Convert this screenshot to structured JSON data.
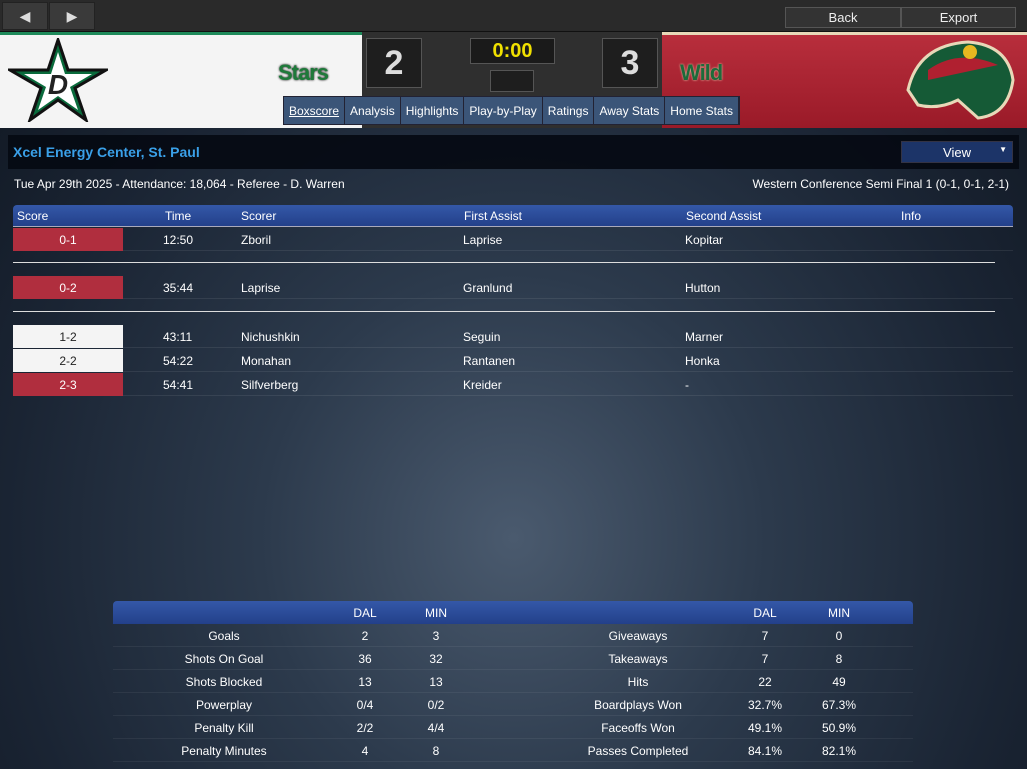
{
  "toolbar": {
    "back": "Back",
    "export": "Export"
  },
  "game": {
    "home_team": "Stars",
    "away_team": "Wild",
    "home_score": "2",
    "away_score": "3",
    "clock": "0:00"
  },
  "tabs": [
    "Boxscore",
    "Analysis",
    "Highlights",
    "Play-by-Play",
    "Ratings",
    "Away Stats",
    "Home Stats"
  ],
  "venue": "Xcel Energy Center, St. Paul",
  "view_label": "View",
  "info_left": "Tue Apr 29th 2025 - Attendance: 18,064 - Referee - D. Warren",
  "info_right": "Western Conference Semi Final 1 (0-1, 0-1, 2-1)",
  "goals_header": {
    "score": "Score",
    "time": "Time",
    "scorer": "Scorer",
    "first": "First Assist",
    "second": "Second Assist",
    "info": "Info"
  },
  "goals": [
    {
      "score": "0-1",
      "time": "12:50",
      "scorer": "Zboril",
      "first": "Laprise",
      "second": "Kopitar",
      "color": "red"
    },
    {
      "score": "0-2",
      "time": "35:44",
      "scorer": "Laprise",
      "first": "Granlund",
      "second": "Hutton",
      "color": "red"
    },
    {
      "score": "1-2",
      "time": "43:11",
      "scorer": "Nichushkin",
      "first": "Seguin",
      "second": "Marner",
      "color": "white"
    },
    {
      "score": "2-2",
      "time": "54:22",
      "scorer": "Monahan",
      "first": "Rantanen",
      "second": "Honka",
      "color": "white"
    },
    {
      "score": "2-3",
      "time": "54:41",
      "scorer": "Silfverberg",
      "first": "Kreider",
      "second": "-",
      "color": "red"
    }
  ],
  "stats_header": {
    "a": "DAL",
    "b": "MIN"
  },
  "stats_left": [
    [
      "Goals",
      "2",
      "3"
    ],
    [
      "Shots On Goal",
      "36",
      "32"
    ],
    [
      "Shots Blocked",
      "13",
      "13"
    ],
    [
      "Powerplay",
      "0/4",
      "0/2"
    ],
    [
      "Penalty Kill",
      "2/2",
      "4/4"
    ],
    [
      "Penalty Minutes",
      "4",
      "8"
    ]
  ],
  "stats_right": [
    [
      "Giveaways",
      "7",
      "0"
    ],
    [
      "Takeaways",
      "7",
      "8"
    ],
    [
      "Hits",
      "22",
      "49"
    ],
    [
      "Boardplays Won",
      "32.7%",
      "67.3%"
    ],
    [
      "Faceoffs Won",
      "49.1%",
      "50.9%"
    ],
    [
      "Passes Completed",
      "84.1%",
      "82.1%"
    ]
  ]
}
